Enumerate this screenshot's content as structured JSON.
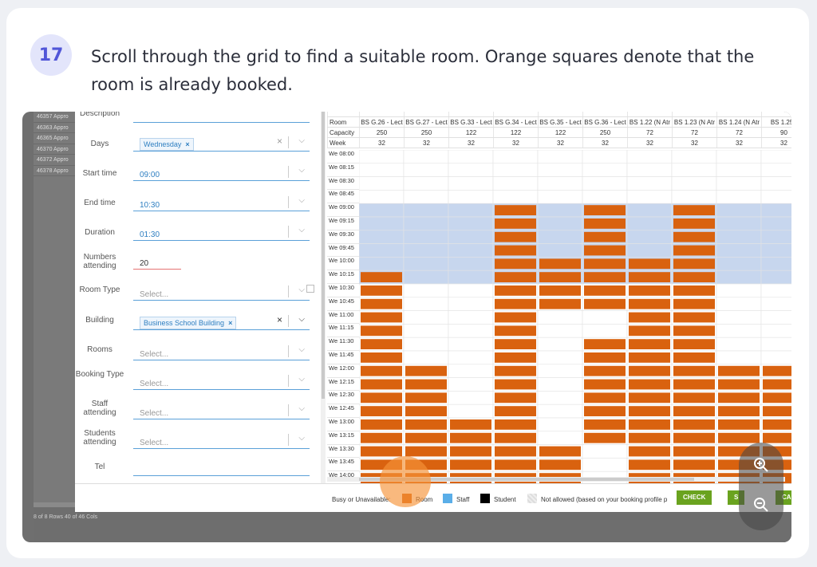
{
  "step": {
    "number": "17",
    "text": "Scroll through the grid to find a suitable room. Orange squares denote that the room is already booked."
  },
  "background": {
    "rows": [
      {
        "id": "46357",
        "status": "Appro"
      },
      {
        "id": "46363",
        "status": "Appro"
      },
      {
        "id": "46365",
        "status": "Appro"
      },
      {
        "id": "46370",
        "status": "Appro"
      },
      {
        "id": "46372",
        "status": "Appro"
      },
      {
        "id": "46378",
        "status": "Appro"
      }
    ],
    "footer_text": "8 of 8 Rows   40 of 46 Cols"
  },
  "form": {
    "description_label": "Description",
    "days_label": "Days",
    "days_value": "Wednesday",
    "start_label": "Start time",
    "start_value": "09:00",
    "end_label": "End time",
    "end_value": "10:30",
    "duration_label": "Duration",
    "duration_value": "01:30",
    "numbers_label": "Numbers attending",
    "numbers_value": "20",
    "roomtype_label": "Room Type",
    "roomtype_placeholder": "Select...",
    "building_label": "Building",
    "building_value": "Business School Building",
    "rooms_label": "Rooms",
    "rooms_placeholder": "Select...",
    "booking_label": "Booking Type",
    "booking_placeholder": "Select...",
    "staff_label": "Staff attending",
    "staff_placeholder": "Select...",
    "students_label": "Students attending",
    "students_placeholder": "Select...",
    "tel_label": "Tel"
  },
  "grid": {
    "header_labels": {
      "room": "Room",
      "capacity": "Capacity",
      "week": "Week"
    },
    "rooms": [
      "BS G.26 - Lect",
      "BS G.27 - Lect",
      "BS G.33 - Lect",
      "BS G.34 - Lect",
      "BS G.35 - Lect",
      "BS G.36 - Lect",
      "BS 1.22 (N Atr",
      "BS 1.23 (N Atr",
      "BS 1.24 (N Atr",
      "BS 1.25 ("
    ],
    "capacity": [
      "250",
      "250",
      "122",
      "122",
      "122",
      "250",
      "72",
      "72",
      "72",
      "90"
    ],
    "week": [
      "32",
      "32",
      "32",
      "32",
      "32",
      "32",
      "32",
      "32",
      "32",
      "32"
    ],
    "times": [
      "We 08:00",
      "We 08:15",
      "We 08:30",
      "We 08:45",
      "We 09:00",
      "We 09:15",
      "We 09:30",
      "We 09:45",
      "We 10:00",
      "We 10:15",
      "We 10:30",
      "We 10:45",
      "We 11:00",
      "We 11:15",
      "We 11:30",
      "We 11:45",
      "We 12:00",
      "We 12:15",
      "We 12:30",
      "We 12:45",
      "We 13:00",
      "We 13:15",
      "We 13:30",
      "We 13:45",
      "We 14:00"
    ],
    "selected_slot_range": [
      4,
      9
    ],
    "bookings": [
      [
        9,
        24
      ],
      [
        16,
        24
      ],
      [
        20,
        24
      ],
      [
        4,
        24
      ],
      [
        8,
        11,
        22,
        24
      ],
      [
        4,
        11,
        14,
        21
      ],
      [
        8,
        24
      ],
      [
        4,
        24
      ],
      [
        16,
        24
      ],
      [
        16,
        24
      ]
    ]
  },
  "colors": {
    "booked": "#d9620f",
    "selected": "#c7d6ee",
    "staff": "#5aaee8",
    "student": "#000000",
    "accent_button": "#6aa31f"
  },
  "legend": {
    "busy": "Busy or Unavailable:",
    "room": "Room",
    "staff": "Staff",
    "student": "Student",
    "not_allowed": "Not allowed (based on your booking profile p"
  },
  "buttons": {
    "check": "CHECK",
    "second": "S",
    "third": "CA"
  },
  "zoom": {
    "in_icon": "zoom-in-icon",
    "out_icon": "zoom-out-icon"
  }
}
